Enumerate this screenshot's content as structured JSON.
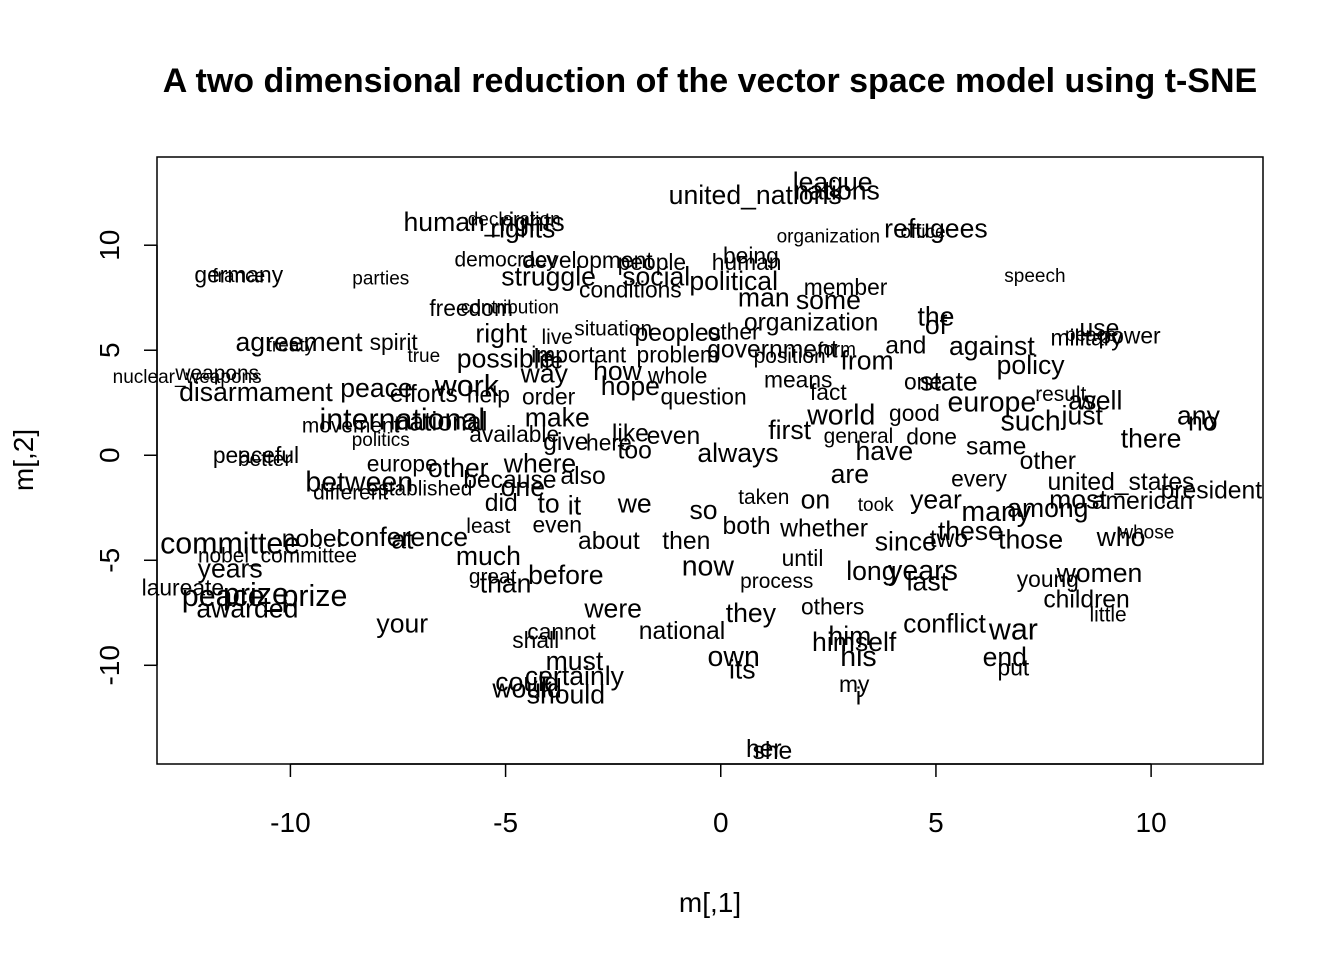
{
  "chart_data": {
    "type": "scatter",
    "title": "A two dimensional reduction of the vector space model using t-SNE",
    "xlabel": "m[,1]",
    "ylabel": "m[,2]",
    "xlim": [
      -13.1,
      12.6
    ],
    "ylim": [
      -14.7,
      14.2
    ],
    "xticks": [
      -10,
      -5,
      0,
      5,
      10
    ],
    "yticks": [
      -10,
      -5,
      0,
      5,
      10
    ],
    "grid": false,
    "point_labels": [
      {
        "label": "league",
        "x": 2.6,
        "y": 13.0,
        "size": 1.4
      },
      {
        "label": "nations",
        "x": 2.7,
        "y": 12.6,
        "size": 1.4
      },
      {
        "label": "united_nations",
        "x": 0.8,
        "y": 12.4,
        "size": 1.4
      },
      {
        "label": "human_rights",
        "x": -5.5,
        "y": 11.1,
        "size": 1.4
      },
      {
        "label": "rights",
        "x": -4.6,
        "y": 10.8,
        "size": 1.4
      },
      {
        "label": "declaration",
        "x": -4.8,
        "y": 11.2,
        "size": 1.0
      },
      {
        "label": "refugees",
        "x": 5.0,
        "y": 10.8,
        "size": 1.4
      },
      {
        "label": "office",
        "x": 4.7,
        "y": 10.6,
        "size": 1.0
      },
      {
        "label": "organization",
        "x": 2.5,
        "y": 10.4,
        "size": 1.0
      },
      {
        "label": "being",
        "x": 0.7,
        "y": 9.5,
        "size": 1.2
      },
      {
        "label": "human",
        "x": 0.6,
        "y": 9.2,
        "size": 1.2
      },
      {
        "label": "democracy",
        "x": -5.0,
        "y": 9.3,
        "size": 1.1
      },
      {
        "label": "development",
        "x": -3.1,
        "y": 9.3,
        "size": 1.2
      },
      {
        "label": "people",
        "x": -1.6,
        "y": 9.2,
        "size": 1.2
      },
      {
        "label": "struggle",
        "x": -4.0,
        "y": 8.5,
        "size": 1.4
      },
      {
        "label": "social",
        "x": -1.5,
        "y": 8.5,
        "size": 1.4
      },
      {
        "label": "political",
        "x": 0.3,
        "y": 8.3,
        "size": 1.4
      },
      {
        "label": "conditions",
        "x": -2.1,
        "y": 7.9,
        "size": 1.2
      },
      {
        "label": "member",
        "x": 2.9,
        "y": 8.0,
        "size": 1.2
      },
      {
        "label": "some",
        "x": 2.5,
        "y": 7.4,
        "size": 1.4
      },
      {
        "label": "man",
        "x": 1.0,
        "y": 7.5,
        "size": 1.4
      },
      {
        "label": "germany",
        "x": -11.2,
        "y": 8.6,
        "size": 1.2
      },
      {
        "label": "france",
        "x": -11.2,
        "y": 8.5,
        "size": 1.0
      },
      {
        "label": "parties",
        "x": -7.9,
        "y": 8.4,
        "size": 1.0
      },
      {
        "label": "speech",
        "x": 7.3,
        "y": 8.5,
        "size": 1.0
      },
      {
        "label": "freedom",
        "x": -5.8,
        "y": 7.0,
        "size": 1.2
      },
      {
        "label": "contribution",
        "x": -4.9,
        "y": 7.0,
        "size": 1.0
      },
      {
        "label": "organization",
        "x": 2.1,
        "y": 6.3,
        "size": 1.3
      },
      {
        "label": "the",
        "x": 5.0,
        "y": 6.6,
        "size": 1.4
      },
      {
        "label": "of",
        "x": 5.0,
        "y": 6.2,
        "size": 1.4
      },
      {
        "label": "and",
        "x": 4.3,
        "y": 5.2,
        "size": 1.3
      },
      {
        "label": "use",
        "x": 8.8,
        "y": 6.0,
        "size": 1.3
      },
      {
        "label": "military",
        "x": 8.5,
        "y": 5.6,
        "size": 1.2
      },
      {
        "label": "power",
        "x": 9.5,
        "y": 5.7,
        "size": 1.2
      },
      {
        "label": "peace",
        "x": 8.6,
        "y": 5.7,
        "size": 1.0
      },
      {
        "label": "situation",
        "x": -2.5,
        "y": 6.0,
        "size": 1.1
      },
      {
        "label": "peoples",
        "x": -1.0,
        "y": 5.8,
        "size": 1.3
      },
      {
        "label": "other",
        "x": 0.3,
        "y": 5.9,
        "size": 1.2
      },
      {
        "label": "right",
        "x": -5.1,
        "y": 5.8,
        "size": 1.4
      },
      {
        "label": "live",
        "x": -3.8,
        "y": 5.6,
        "size": 1.1
      },
      {
        "label": "against",
        "x": 6.3,
        "y": 5.2,
        "size": 1.4
      },
      {
        "label": "agreement",
        "x": -9.8,
        "y": 5.4,
        "size": 1.4
      },
      {
        "label": "treaty",
        "x": -10.0,
        "y": 5.2,
        "size": 1.0
      },
      {
        "label": "spirit",
        "x": -7.6,
        "y": 5.4,
        "size": 1.2
      },
      {
        "label": "government",
        "x": 1.2,
        "y": 5.0,
        "size": 1.3
      },
      {
        "label": "form",
        "x": 2.7,
        "y": 5.0,
        "size": 1.0
      },
      {
        "label": "true",
        "x": -6.9,
        "y": 4.7,
        "size": 1.0
      },
      {
        "label": "possible",
        "x": -5.0,
        "y": 4.6,
        "size": 1.4
      },
      {
        "label": "life",
        "x": -4.0,
        "y": 4.5,
        "size": 1.2
      },
      {
        "label": "important",
        "x": -3.3,
        "y": 4.8,
        "size": 1.2
      },
      {
        "label": "problem",
        "x": -1.0,
        "y": 4.8,
        "size": 1.2
      },
      {
        "label": "position",
        "x": 1.6,
        "y": 4.7,
        "size": 1.1
      },
      {
        "label": "from",
        "x": 3.4,
        "y": 4.5,
        "size": 1.4
      },
      {
        "label": "policy",
        "x": 7.2,
        "y": 4.3,
        "size": 1.4
      },
      {
        "label": "weapons",
        "x": -11.7,
        "y": 3.9,
        "size": 1.1
      },
      {
        "label": "nuclear_weapons",
        "x": -12.4,
        "y": 3.7,
        "size": 1.0
      },
      {
        "label": "disarmament",
        "x": -10.8,
        "y": 3.0,
        "size": 1.4
      },
      {
        "label": "peace",
        "x": -8.0,
        "y": 3.2,
        "size": 1.4
      },
      {
        "label": "work",
        "x": -5.9,
        "y": 3.3,
        "size": 1.6
      },
      {
        "label": "way",
        "x": -4.1,
        "y": 3.9,
        "size": 1.4
      },
      {
        "label": "how",
        "x": -2.4,
        "y": 4.0,
        "size": 1.4
      },
      {
        "label": "whole",
        "x": -1.0,
        "y": 3.8,
        "size": 1.2
      },
      {
        "label": "means",
        "x": 1.8,
        "y": 3.6,
        "size": 1.2
      },
      {
        "label": "state",
        "x": 5.3,
        "y": 3.5,
        "size": 1.4
      },
      {
        "label": "one",
        "x": 4.7,
        "y": 3.5,
        "size": 1.2
      },
      {
        "label": "hope",
        "x": -2.1,
        "y": 3.3,
        "size": 1.4
      },
      {
        "label": "efforts",
        "x": -6.9,
        "y": 2.9,
        "size": 1.3
      },
      {
        "label": "help",
        "x": -5.4,
        "y": 2.9,
        "size": 1.2
      },
      {
        "label": "order",
        "x": -4.0,
        "y": 2.8,
        "size": 1.2
      },
      {
        "label": "question",
        "x": -0.4,
        "y": 2.8,
        "size": 1.2
      },
      {
        "label": "europe",
        "x": 6.3,
        "y": 2.5,
        "size": 1.5
      },
      {
        "label": "result",
        "x": 7.9,
        "y": 2.9,
        "size": 1.1
      },
      {
        "label": "as",
        "x": 8.4,
        "y": 2.6,
        "size": 1.4
      },
      {
        "label": "well",
        "x": 8.8,
        "y": 2.6,
        "size": 1.4
      },
      {
        "label": "fact",
        "x": 2.5,
        "y": 3.0,
        "size": 1.2
      },
      {
        "label": "international",
        "x": -7.4,
        "y": 1.7,
        "size": 1.6
      },
      {
        "label": "national",
        "x": -6.5,
        "y": 1.6,
        "size": 1.4
      },
      {
        "label": "movement",
        "x": -8.6,
        "y": 1.4,
        "size": 1.1
      },
      {
        "label": "world",
        "x": 2.8,
        "y": 1.9,
        "size": 1.5
      },
      {
        "label": "good",
        "x": 4.5,
        "y": 2.0,
        "size": 1.2
      },
      {
        "label": "just",
        "x": 8.4,
        "y": 1.9,
        "size": 1.4
      },
      {
        "label": "such",
        "x": 7.2,
        "y": 1.6,
        "size": 1.5
      },
      {
        "label": "any",
        "x": 11.1,
        "y": 1.9,
        "size": 1.4
      },
      {
        "label": "no",
        "x": 11.2,
        "y": 1.6,
        "size": 1.4
      },
      {
        "label": "there",
        "x": 10.0,
        "y": 0.8,
        "size": 1.4
      },
      {
        "label": "make",
        "x": -3.8,
        "y": 1.8,
        "size": 1.4
      },
      {
        "label": "available",
        "x": -4.8,
        "y": 1.0,
        "size": 1.2
      },
      {
        "label": "politics",
        "x": -7.9,
        "y": 0.7,
        "size": 1.0
      },
      {
        "label": "give",
        "x": -3.6,
        "y": 0.6,
        "size": 1.3
      },
      {
        "label": "here",
        "x": -2.6,
        "y": 0.6,
        "size": 1.2
      },
      {
        "label": "like",
        "x": -2.1,
        "y": 1.0,
        "size": 1.3
      },
      {
        "label": "even",
        "x": -1.1,
        "y": 0.9,
        "size": 1.3
      },
      {
        "label": "first",
        "x": 1.6,
        "y": 1.2,
        "size": 1.4
      },
      {
        "label": "general",
        "x": 3.2,
        "y": 0.9,
        "size": 1.1
      },
      {
        "label": "done",
        "x": 4.9,
        "y": 0.9,
        "size": 1.2
      },
      {
        "label": "same",
        "x": 6.4,
        "y": 0.4,
        "size": 1.3
      },
      {
        "label": "peaceful",
        "x": -10.8,
        "y": 0.0,
        "size": 1.2
      },
      {
        "label": "better",
        "x": -10.6,
        "y": -0.2,
        "size": 1.1
      },
      {
        "label": "europe",
        "x": -7.4,
        "y": -0.4,
        "size": 1.2
      },
      {
        "label": "other",
        "x": -6.1,
        "y": -0.6,
        "size": 1.4
      },
      {
        "label": "where",
        "x": -4.2,
        "y": -0.4,
        "size": 1.4
      },
      {
        "label": "too",
        "x": -2.0,
        "y": 0.2,
        "size": 1.3
      },
      {
        "label": "always",
        "x": 0.4,
        "y": 0.1,
        "size": 1.4
      },
      {
        "label": "have",
        "x": 3.8,
        "y": 0.2,
        "size": 1.4
      },
      {
        "label": "other",
        "x": 7.6,
        "y": -0.3,
        "size": 1.3
      },
      {
        "label": "between",
        "x": -8.4,
        "y": -1.3,
        "size": 1.5
      },
      {
        "label": "different",
        "x": -8.6,
        "y": -1.8,
        "size": 1.1
      },
      {
        "label": "established",
        "x": -7.0,
        "y": -1.6,
        "size": 1.1
      },
      {
        "label": "because",
        "x": -4.9,
        "y": -1.2,
        "size": 1.3
      },
      {
        "label": "also",
        "x": -3.2,
        "y": -1.0,
        "size": 1.3
      },
      {
        "label": "are",
        "x": 3.0,
        "y": -0.9,
        "size": 1.4
      },
      {
        "label": "every",
        "x": 6.0,
        "y": -1.1,
        "size": 1.2
      },
      {
        "label": "united_states",
        "x": 9.3,
        "y": -1.3,
        "size": 1.3
      },
      {
        "label": "president",
        "x": 11.4,
        "y": -1.7,
        "size": 1.3
      },
      {
        "label": "one",
        "x": -4.6,
        "y": -1.5,
        "size": 1.4
      },
      {
        "label": "on",
        "x": 2.2,
        "y": -2.1,
        "size": 1.4
      },
      {
        "label": "year",
        "x": 5.0,
        "y": -2.1,
        "size": 1.4
      },
      {
        "label": "most",
        "x": 8.3,
        "y": -2.1,
        "size": 1.4
      },
      {
        "label": "american",
        "x": 9.8,
        "y": -2.2,
        "size": 1.3
      },
      {
        "label": "among",
        "x": 7.6,
        "y": -2.5,
        "size": 1.4
      },
      {
        "label": "many",
        "x": 6.4,
        "y": -2.7,
        "size": 1.5
      },
      {
        "label": "did",
        "x": -5.1,
        "y": -2.3,
        "size": 1.3
      },
      {
        "label": "to",
        "x": -4.0,
        "y": -2.3,
        "size": 1.4
      },
      {
        "label": "it",
        "x": -3.4,
        "y": -2.4,
        "size": 1.4
      },
      {
        "label": "we",
        "x": -2.0,
        "y": -2.3,
        "size": 1.4
      },
      {
        "label": "so",
        "x": -0.4,
        "y": -2.6,
        "size": 1.4
      },
      {
        "label": "taken",
        "x": 1.0,
        "y": -2.0,
        "size": 1.1
      },
      {
        "label": "took",
        "x": 3.6,
        "y": -2.4,
        "size": 1.0
      },
      {
        "label": "least",
        "x": -5.4,
        "y": -3.4,
        "size": 1.1
      },
      {
        "label": "even",
        "x": -3.8,
        "y": -3.3,
        "size": 1.2
      },
      {
        "label": "both",
        "x": 0.6,
        "y": -3.4,
        "size": 1.3
      },
      {
        "label": "whether",
        "x": 2.4,
        "y": -3.5,
        "size": 1.3
      },
      {
        "label": "about",
        "x": -2.6,
        "y": -4.1,
        "size": 1.3
      },
      {
        "label": "then",
        "x": -0.8,
        "y": -4.1,
        "size": 1.3
      },
      {
        "label": "since",
        "x": 4.3,
        "y": -4.1,
        "size": 1.4
      },
      {
        "label": "these",
        "x": 5.8,
        "y": -3.6,
        "size": 1.4
      },
      {
        "label": "two",
        "x": 5.3,
        "y": -4.0,
        "size": 1.3
      },
      {
        "label": "those",
        "x": 7.2,
        "y": -4.0,
        "size": 1.4
      },
      {
        "label": "who",
        "x": 9.3,
        "y": -3.9,
        "size": 1.4
      },
      {
        "label": "whose",
        "x": 9.9,
        "y": -3.7,
        "size": 1.0
      },
      {
        "label": "committee",
        "x": -11.4,
        "y": -4.2,
        "size": 1.6
      },
      {
        "label": "nobel",
        "x": -9.5,
        "y": -4.0,
        "size": 1.3
      },
      {
        "label": "conference",
        "x": -7.4,
        "y": -3.9,
        "size": 1.4
      },
      {
        "label": "at",
        "x": -7.4,
        "y": -4.0,
        "size": 1.4
      },
      {
        "label": "nobel_committee",
        "x": -10.3,
        "y": -4.8,
        "size": 1.1
      },
      {
        "label": "years",
        "x": -11.4,
        "y": -5.4,
        "size": 1.4
      },
      {
        "label": "much",
        "x": -5.4,
        "y": -4.8,
        "size": 1.4
      },
      {
        "label": "now",
        "x": -0.3,
        "y": -5.3,
        "size": 1.5
      },
      {
        "label": "until",
        "x": 1.9,
        "y": -4.9,
        "size": 1.2
      },
      {
        "label": "long",
        "x": 3.5,
        "y": -5.5,
        "size": 1.4
      },
      {
        "label": "years",
        "x": 4.7,
        "y": -5.5,
        "size": 1.5
      },
      {
        "label": "last",
        "x": 4.8,
        "y": -6.0,
        "size": 1.4
      },
      {
        "label": "young",
        "x": 7.6,
        "y": -5.9,
        "size": 1.2
      },
      {
        "label": "women",
        "x": 8.8,
        "y": -5.6,
        "size": 1.4
      },
      {
        "label": "laureate",
        "x": -12.5,
        "y": -6.3,
        "size": 1.2
      },
      {
        "label": "peace_prize",
        "x": -10.6,
        "y": -6.7,
        "size": 1.6
      },
      {
        "label": "prize",
        "x": -10.8,
        "y": -6.6,
        "size": 1.6
      },
      {
        "label": "awarded",
        "x": -11.0,
        "y": -7.3,
        "size": 1.4
      },
      {
        "label": "great",
        "x": -5.3,
        "y": -5.8,
        "size": 1.1
      },
      {
        "label": "before",
        "x": -3.6,
        "y": -5.7,
        "size": 1.4
      },
      {
        "label": "than",
        "x": -5.0,
        "y": -6.1,
        "size": 1.4
      },
      {
        "label": "process",
        "x": 1.3,
        "y": -6.0,
        "size": 1.1
      },
      {
        "label": "children",
        "x": 8.5,
        "y": -6.9,
        "size": 1.3
      },
      {
        "label": "little",
        "x": 9.0,
        "y": -7.6,
        "size": 1.1
      },
      {
        "label": "were",
        "x": -2.5,
        "y": -7.3,
        "size": 1.4
      },
      {
        "label": "they",
        "x": 0.7,
        "y": -7.5,
        "size": 1.4
      },
      {
        "label": "others",
        "x": 2.6,
        "y": -7.2,
        "size": 1.2
      },
      {
        "label": "conflict",
        "x": 5.2,
        "y": -8.0,
        "size": 1.4
      },
      {
        "label": "your",
        "x": -7.4,
        "y": -8.0,
        "size": 1.4
      },
      {
        "label": "national",
        "x": -0.9,
        "y": -8.4,
        "size": 1.3
      },
      {
        "label": "shall",
        "x": -4.3,
        "y": -8.8,
        "size": 1.2
      },
      {
        "label": "cannot",
        "x": -3.7,
        "y": -8.4,
        "size": 1.2
      },
      {
        "label": "him",
        "x": 3.0,
        "y": -8.6,
        "size": 1.4
      },
      {
        "label": "war",
        "x": 6.8,
        "y": -8.3,
        "size": 1.6
      },
      {
        "label": "himself",
        "x": 3.1,
        "y": -8.9,
        "size": 1.4
      },
      {
        "label": "his",
        "x": 3.2,
        "y": -9.6,
        "size": 1.5
      },
      {
        "label": "own",
        "x": 0.3,
        "y": -9.6,
        "size": 1.5
      },
      {
        "label": "must",
        "x": -3.4,
        "y": -9.8,
        "size": 1.4
      },
      {
        "label": "end",
        "x": 6.6,
        "y": -9.6,
        "size": 1.4
      },
      {
        "label": "put",
        "x": 6.8,
        "y": -10.1,
        "size": 1.2
      },
      {
        "label": "certainly",
        "x": -3.4,
        "y": -10.5,
        "size": 1.4
      },
      {
        "label": "its",
        "x": 0.5,
        "y": -10.2,
        "size": 1.4
      },
      {
        "label": "could",
        "x": -4.5,
        "y": -10.8,
        "size": 1.4
      },
      {
        "label": "would",
        "x": -4.5,
        "y": -11.1,
        "size": 1.4
      },
      {
        "label": "should",
        "x": -3.6,
        "y": -11.4,
        "size": 1.4
      },
      {
        "label": "my",
        "x": 3.1,
        "y": -10.9,
        "size": 1.2
      },
      {
        "label": "i",
        "x": 3.2,
        "y": -11.5,
        "size": 1.3
      },
      {
        "label": "her",
        "x": 1.0,
        "y": -14.0,
        "size": 1.3
      },
      {
        "label": "she",
        "x": 1.2,
        "y": -14.1,
        "size": 1.3
      }
    ]
  }
}
